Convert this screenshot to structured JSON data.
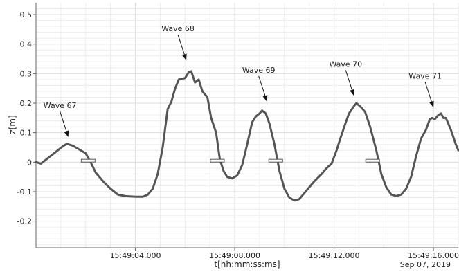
{
  "chart_data": {
    "type": "line",
    "title": "",
    "xlabel": "t[hh:mm:ss:ms]",
    "ylabel": "z[m]",
    "date_label": "Sep 07, 2019",
    "xlim": [
      "15:49:00.000",
      "15:49:17.000"
    ],
    "ylim": [
      -0.29,
      0.54
    ],
    "x_unit": "time of day (hh:mm:ss.ms)",
    "grid": true,
    "x_ticks": [
      {
        "value": "15:49:04.000",
        "label": "15:49:04.000"
      },
      {
        "value": "15:49:08.000",
        "label": "15:49:08.000"
      },
      {
        "value": "15:49:12.000",
        "label": "15:49:12.000"
      },
      {
        "value": "15:49:16.000",
        "label": "15:49:16.000"
      }
    ],
    "y_ticks": [
      {
        "value": -0.2,
        "label": "-0.2"
      },
      {
        "value": -0.1,
        "label": "-0.1"
      },
      {
        "value": 0,
        "label": "0"
      },
      {
        "value": 0.1,
        "label": "0.1"
      },
      {
        "value": 0.2,
        "label": "0.2"
      },
      {
        "value": 0.3,
        "label": "0.3"
      },
      {
        "value": 0.4,
        "label": "0.4"
      },
      {
        "value": 0.5,
        "label": "0.5"
      }
    ],
    "series": [
      {
        "name": "",
        "color": "#555555",
        "points": [
          [
            "15:49:00.000",
            0.0
          ],
          [
            "15:49:00.200",
            -0.005
          ],
          [
            "15:49:00.500",
            0.015
          ],
          [
            "15:49:00.800",
            0.035
          ],
          [
            "15:49:01.100",
            0.055
          ],
          [
            "15:49:01.250",
            0.062
          ],
          [
            "15:49:01.500",
            0.055
          ],
          [
            "15:49:01.800",
            0.04
          ],
          [
            "15:49:02.000",
            0.03
          ],
          [
            "15:49:02.200",
            0.0
          ],
          [
            "15:49:02.400",
            -0.035
          ],
          [
            "15:49:02.700",
            -0.065
          ],
          [
            "15:49:03.000",
            -0.09
          ],
          [
            "15:49:03.300",
            -0.11
          ],
          [
            "15:49:03.600",
            -0.115
          ],
          [
            "15:49:04.000",
            -0.117
          ],
          [
            "15:49:04.300",
            -0.117
          ],
          [
            "15:49:04.500",
            -0.11
          ],
          [
            "15:49:04.700",
            -0.09
          ],
          [
            "15:49:04.900",
            -0.04
          ],
          [
            "15:49:05.100",
            0.05
          ],
          [
            "15:49:05.300",
            0.18
          ],
          [
            "15:49:05.450",
            0.205
          ],
          [
            "15:49:05.600",
            0.25
          ],
          [
            "15:49:05.750",
            0.28
          ],
          [
            "15:49:06.000",
            0.285
          ],
          [
            "15:49:06.150",
            0.305
          ],
          [
            "15:49:06.250",
            0.308
          ],
          [
            "15:49:06.400",
            0.27
          ],
          [
            "15:49:06.550",
            0.28
          ],
          [
            "15:49:06.700",
            0.24
          ],
          [
            "15:49:06.900",
            0.22
          ],
          [
            "15:49:07.050",
            0.15
          ],
          [
            "15:49:07.250",
            0.1
          ],
          [
            "15:49:07.400",
            0.01
          ],
          [
            "15:49:07.550",
            -0.03
          ],
          [
            "15:49:07.700",
            -0.05
          ],
          [
            "15:49:07.900",
            -0.055
          ],
          [
            "15:49:08.100",
            -0.045
          ],
          [
            "15:49:08.300",
            -0.01
          ],
          [
            "15:49:08.500",
            0.06
          ],
          [
            "15:49:08.700",
            0.135
          ],
          [
            "15:49:08.850",
            0.155
          ],
          [
            "15:49:09.000",
            0.165
          ],
          [
            "15:49:09.100",
            0.175
          ],
          [
            "15:49:09.250",
            0.165
          ],
          [
            "15:49:09.400",
            0.13
          ],
          [
            "15:49:09.600",
            0.06
          ],
          [
            "15:49:09.800",
            -0.03
          ],
          [
            "15:49:10.000",
            -0.09
          ],
          [
            "15:49:10.200",
            -0.12
          ],
          [
            "15:49:10.400",
            -0.13
          ],
          [
            "15:49:10.600",
            -0.125
          ],
          [
            "15:49:10.900",
            -0.095
          ],
          [
            "15:49:11.200",
            -0.065
          ],
          [
            "15:49:11.500",
            -0.04
          ],
          [
            "15:49:11.700",
            -0.02
          ],
          [
            "15:49:11.900",
            -0.005
          ],
          [
            "15:49:12.100",
            0.04
          ],
          [
            "15:49:12.250",
            0.08
          ],
          [
            "15:49:12.450",
            0.13
          ],
          [
            "15:49:12.600",
            0.165
          ],
          [
            "15:49:12.800",
            0.19
          ],
          [
            "15:49:12.900",
            0.2
          ],
          [
            "15:49:13.100",
            0.185
          ],
          [
            "15:49:13.250",
            0.17
          ],
          [
            "15:49:13.450",
            0.12
          ],
          [
            "15:49:13.700",
            0.04
          ],
          [
            "15:49:13.900",
            -0.04
          ],
          [
            "15:49:14.100",
            -0.085
          ],
          [
            "15:49:14.300",
            -0.11
          ],
          [
            "15:49:14.500",
            -0.115
          ],
          [
            "15:49:14.700",
            -0.11
          ],
          [
            "15:49:14.900",
            -0.09
          ],
          [
            "15:49:15.100",
            -0.05
          ],
          [
            "15:49:15.300",
            0.02
          ],
          [
            "15:49:15.500",
            0.08
          ],
          [
            "15:49:15.700",
            0.11
          ],
          [
            "15:49:15.850",
            0.145
          ],
          [
            "15:49:15.950",
            0.15
          ],
          [
            "15:49:16.050",
            0.145
          ],
          [
            "15:49:16.200",
            0.16
          ],
          [
            "15:49:16.300",
            0.165
          ],
          [
            "15:49:16.400",
            0.15
          ],
          [
            "15:49:16.500",
            0.15
          ],
          [
            "15:49:16.700",
            0.11
          ],
          [
            "15:49:16.900",
            0.06
          ],
          [
            "15:49:17.000",
            0.04
          ]
        ]
      }
    ],
    "zero_crossing_markers": [
      {
        "x": "15:49:02.100",
        "y": 0.005
      },
      {
        "x": "15:49:07.300",
        "y": 0.005
      },
      {
        "x": "15:49:09.650",
        "y": 0.005
      },
      {
        "x": "15:49:13.550",
        "y": 0.005
      }
    ],
    "annotations": [
      {
        "text": "Wave 67",
        "point_x": "15:49:01.300",
        "point_y": 0.085
      },
      {
        "text": "Wave 68",
        "point_x": "15:49:06.050",
        "point_y": 0.345
      },
      {
        "text": "Wave 69",
        "point_x": "15:49:09.300",
        "point_y": 0.205
      },
      {
        "text": "Wave 70",
        "point_x": "15:49:12.800",
        "point_y": 0.225
      },
      {
        "text": "Wave 71",
        "point_x": "15:49:16.000",
        "point_y": 0.185
      }
    ]
  }
}
